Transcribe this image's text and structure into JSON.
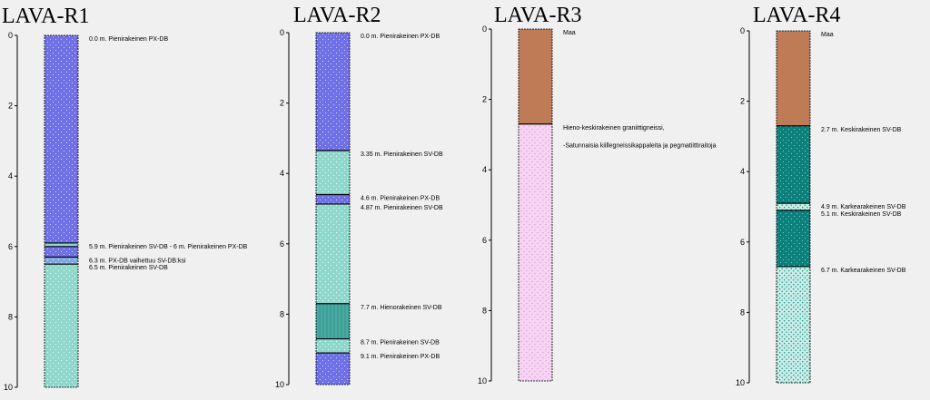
{
  "chart_data": [
    {
      "type": "strip-log",
      "title": "LAVA-R1",
      "ylim": [
        0,
        10
      ],
      "yticks": [
        0,
        2,
        4,
        6,
        8,
        10
      ],
      "layers": [
        {
          "top": 0.0,
          "bottom": 5.9,
          "rock": "PX-DB"
        },
        {
          "top": 5.9,
          "bottom": 6.0,
          "rock": "SV-DB"
        },
        {
          "top": 6.0,
          "bottom": 6.3,
          "rock": "PX-DB"
        },
        {
          "top": 6.3,
          "bottom": 6.5,
          "rock": "PX-DB-SV"
        },
        {
          "top": 6.5,
          "bottom": 10.0,
          "rock": "SV-DB"
        }
      ],
      "annotations": [
        {
          "depth": 0.0,
          "text": "0.0 m. Pienirakeinen PX-DB"
        },
        {
          "depth": 5.9,
          "text": "5.9 m. Pienirakeinen SV-DB - 6 m. Pienirakeinen PX-DB"
        },
        {
          "depth": 6.3,
          "text": "6.3 m. PX-DB vaihettuu SV-DB:ksi"
        },
        {
          "depth": 6.5,
          "text": "6.5 m. Pienirakeinen SV-DB"
        }
      ]
    },
    {
      "type": "strip-log",
      "title": "LAVA-R2",
      "ylim": [
        0,
        10
      ],
      "yticks": [
        0,
        2,
        4,
        6,
        8,
        10
      ],
      "layers": [
        {
          "top": 0.0,
          "bottom": 3.35,
          "rock": "PX-DB"
        },
        {
          "top": 3.35,
          "bottom": 4.6,
          "rock": "SV-DB"
        },
        {
          "top": 4.6,
          "bottom": 4.87,
          "rock": "PX-DB"
        },
        {
          "top": 4.87,
          "bottom": 7.7,
          "rock": "SV-DB"
        },
        {
          "top": 7.7,
          "bottom": 8.7,
          "rock": "SV-DB-hieno"
        },
        {
          "top": 8.7,
          "bottom": 9.1,
          "rock": "SV-DB"
        },
        {
          "top": 9.1,
          "bottom": 10.0,
          "rock": "PX-DB"
        }
      ],
      "annotations": [
        {
          "depth": 0.0,
          "text": "0.0 m. Pienirakeinen PX-DB"
        },
        {
          "depth": 3.35,
          "text": "3.35 m. Pienirakeinen SV-DB"
        },
        {
          "depth": 4.6,
          "text": "4.6 m. Pienirakeinen PX-DB"
        },
        {
          "depth": 4.87,
          "text": "4.87 m. Pienirakeinen SV-DB"
        },
        {
          "depth": 7.7,
          "text": "7.7 m. Hienorakeinen SV-DB"
        },
        {
          "depth": 8.7,
          "text": "8.7 m. Pienirakeinen SV-DB"
        },
        {
          "depth": 9.1,
          "text": "9.1 m. Pienirakeinen PX-DB"
        }
      ]
    },
    {
      "type": "strip-log",
      "title": "LAVA-R3",
      "ylim": [
        0,
        10
      ],
      "yticks": [
        0,
        2,
        4,
        6,
        8,
        10
      ],
      "layers": [
        {
          "top": 0.0,
          "bottom": 2.7,
          "rock": "Maa"
        },
        {
          "top": 2.7,
          "bottom": 10.0,
          "rock": "gneissi"
        }
      ],
      "annotations": [
        {
          "depth": 0.0,
          "text": "Maa"
        },
        {
          "depth": 2.7,
          "text": "Hieno-keskirakeinen graniittigneissi,"
        },
        {
          "depth": 3.0,
          "text": "-Satunnaisia kiillegneissikappaleita ja pegmatiittiraitoja"
        }
      ]
    },
    {
      "type": "strip-log",
      "title": "LAVA-R4",
      "ylim": [
        0,
        10
      ],
      "yticks": [
        0,
        2,
        4,
        6,
        8,
        10
      ],
      "layers": [
        {
          "top": 0.0,
          "bottom": 2.7,
          "rock": "Maa"
        },
        {
          "top": 2.7,
          "bottom": 4.9,
          "rock": "SV-DB-keski"
        },
        {
          "top": 4.9,
          "bottom": 5.1,
          "rock": "SV-DB-karkea"
        },
        {
          "top": 5.1,
          "bottom": 6.7,
          "rock": "SV-DB-keski"
        },
        {
          "top": 6.7,
          "bottom": 10.0,
          "rock": "SV-DB-karkea"
        }
      ],
      "annotations": [
        {
          "depth": 0.0,
          "text": "Maa"
        },
        {
          "depth": 2.7,
          "text": "2.7 m. Keskirakeinen SV-DB"
        },
        {
          "depth": 4.9,
          "text": "4.9 m. Karkearakeinen SV-DB"
        },
        {
          "depth": 5.1,
          "text": "5.1 m. Keskirakeinen SV-DB"
        },
        {
          "depth": 6.7,
          "text": "6.7 m. Karkearakeinen SV-DB"
        }
      ]
    }
  ],
  "colors": {
    "PX-DB": "#6f6fe6",
    "SV-DB": "#8fd6cb",
    "PX-DB-SV": "#7fa6de",
    "SV-DB-hieno": "#3d9f97",
    "Maa": "#bf7b55",
    "gneissi": "#f6d4f2",
    "SV-DB-keski": "#0d7f7a",
    "SV-DB-karkea": "#c8eee8"
  }
}
